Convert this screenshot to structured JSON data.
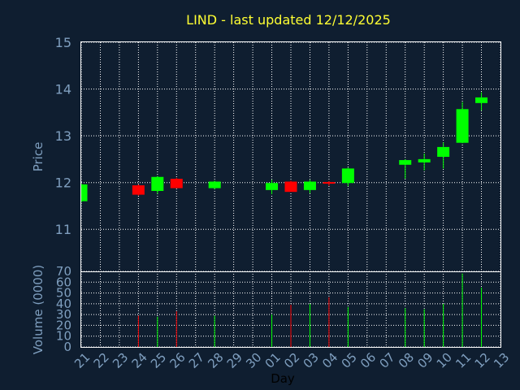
{
  "colors": {
    "background": "#0f1e30",
    "plot_background": "#0f1e30",
    "frame": "#ffffff",
    "grid": "#ffffff",
    "title": "#ffff33",
    "axis_text": "#7f9fbf",
    "x_label": "#000000",
    "up": "#00ff00",
    "down": "#ff0000"
  },
  "chart_data": [
    {
      "type": "candlestick",
      "title": "LIND - last updated 12/12/2025",
      "ylabel": "Price",
      "ylim": [
        10.1,
        15
      ],
      "yticks": [
        11,
        12,
        13,
        14,
        15
      ],
      "grid": true,
      "candles": [
        {
          "day": "21",
          "open": 11.6,
          "high": 11.98,
          "low": 11.58,
          "close": 11.96
        },
        {
          "day": "24",
          "open": 11.94,
          "high": 11.96,
          "low": 11.72,
          "close": 11.74
        },
        {
          "day": "25",
          "open": 11.82,
          "high": 12.14,
          "low": 11.76,
          "close": 12.12
        },
        {
          "day": "26",
          "open": 12.08,
          "high": 12.1,
          "low": 11.88,
          "close": 11.88
        },
        {
          "day": "28",
          "open": 11.88,
          "high": 12.04,
          "low": 11.86,
          "close": 12.02
        },
        {
          "day": "01",
          "open": 11.84,
          "high": 12.06,
          "low": 11.75,
          "close": 11.99
        },
        {
          "day": "02",
          "open": 12.02,
          "high": 12.04,
          "low": 11.8,
          "close": 11.8
        },
        {
          "day": "03",
          "open": 11.84,
          "high": 12.06,
          "low": 11.77,
          "close": 12.02
        },
        {
          "day": "04",
          "open": 12.01,
          "high": 12.03,
          "low": 11.93,
          "close": 11.98
        },
        {
          "day": "05",
          "open": 11.99,
          "high": 12.32,
          "low": 11.92,
          "close": 12.3
        },
        {
          "day": "08",
          "open": 12.38,
          "high": 12.5,
          "low": 12.08,
          "close": 12.48
        },
        {
          "day": "09",
          "open": 12.43,
          "high": 12.62,
          "low": 12.26,
          "close": 12.5
        },
        {
          "day": "10",
          "open": 12.55,
          "high": 12.86,
          "low": 12.3,
          "close": 12.76
        },
        {
          "day": "11",
          "open": 12.85,
          "high": 13.72,
          "low": 12.84,
          "close": 13.57
        },
        {
          "day": "12",
          "open": 13.7,
          "high": 13.93,
          "low": 13.54,
          "close": 13.82
        }
      ]
    },
    {
      "type": "bar",
      "ylabel": "Volume (0000)",
      "xlabel": "Day",
      "ylim": [
        0,
        70
      ],
      "yticks": [
        0,
        10,
        20,
        30,
        40,
        50,
        60,
        70
      ],
      "grid": true,
      "x_ticks": [
        "21",
        "22",
        "23",
        "24",
        "25",
        "26",
        "27",
        "28",
        "29",
        "30",
        "01",
        "02",
        "03",
        "04",
        "05",
        "06",
        "07",
        "08",
        "09",
        "10",
        "11",
        "12",
        "13"
      ],
      "volumes": [
        {
          "day": "21",
          "value": 0,
          "direction": "up"
        },
        {
          "day": "24",
          "value": 29,
          "direction": "down"
        },
        {
          "day": "25",
          "value": 28,
          "direction": "up"
        },
        {
          "day": "26",
          "value": 33,
          "direction": "down"
        },
        {
          "day": "28",
          "value": 29,
          "direction": "up"
        },
        {
          "day": "01",
          "value": 30,
          "direction": "up"
        },
        {
          "day": "02",
          "value": 39,
          "direction": "down"
        },
        {
          "day": "03",
          "value": 40,
          "direction": "up"
        },
        {
          "day": "04",
          "value": 46,
          "direction": "down"
        },
        {
          "day": "05",
          "value": 37,
          "direction": "up"
        },
        {
          "day": "08",
          "value": 36,
          "direction": "up"
        },
        {
          "day": "09",
          "value": 35,
          "direction": "up"
        },
        {
          "day": "10",
          "value": 40,
          "direction": "up"
        },
        {
          "day": "11",
          "value": 68,
          "direction": "up"
        },
        {
          "day": "12",
          "value": 55,
          "direction": "up"
        }
      ]
    }
  ]
}
